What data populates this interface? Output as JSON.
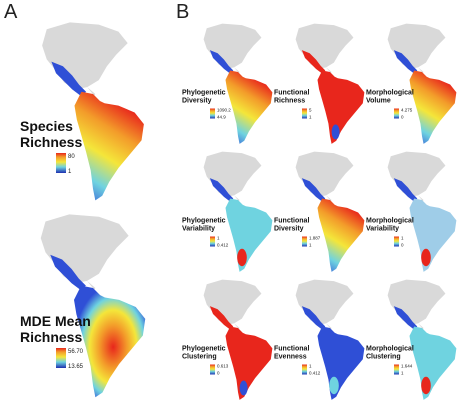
{
  "panels": {
    "A": {
      "letter": "A"
    },
    "B": {
      "letter": "B"
    }
  },
  "panel_a": [
    {
      "line1": "Species",
      "line2": "Richness",
      "legend_max": "80",
      "legend_min": "1",
      "fill": "gradient"
    },
    {
      "line1": "MDE Mean",
      "line2": "Richness",
      "legend_max": "56.70",
      "legend_min": "13.65",
      "fill": "radial"
    }
  ],
  "panel_b": [
    {
      "line1": "Phylogenetic",
      "line2": "Diversity",
      "legend_max": "1090.2",
      "legend_min": "44.9",
      "fill": "gradient"
    },
    {
      "line1": "Functional",
      "line2": "Richness",
      "legend_max": "5",
      "legend_min": "1",
      "fill": "red"
    },
    {
      "line1": "Morphological",
      "line2": "Volume",
      "legend_max": "4.275",
      "legend_min": "0",
      "fill": "gradient"
    },
    {
      "line1": "Phylogenetic",
      "line2": "Variability",
      "legend_max": "1",
      "legend_min": "0.412",
      "fill": "cyan"
    },
    {
      "line1": "Functional",
      "line2": "Diversity",
      "legend_max": "1.887",
      "legend_min": "1",
      "fill": "gradient"
    },
    {
      "line1": "Morphological",
      "line2": "Variability",
      "legend_max": "1",
      "legend_min": "0",
      "fill": "lightblue"
    },
    {
      "line1": "Phylogenetic",
      "line2": "Clustering",
      "legend_max": "0.613",
      "legend_min": "0",
      "fill": "red"
    },
    {
      "line1": "Functional",
      "line2": "Evenness",
      "legend_max": "1",
      "legend_min": "0.412",
      "fill": "blue"
    },
    {
      "line1": "Morphological",
      "line2": "Clustering",
      "legend_max": "1.644",
      "legend_min": "1",
      "fill": "cyan"
    }
  ],
  "colors": {
    "continent": "#d9d9d9",
    "red": "#e8261c",
    "orange": "#f39c2a",
    "yellow": "#f4e63a",
    "green": "#a6d86a",
    "cyan": "#6fd3e0",
    "lightblue": "#9fcde8",
    "blue": "#2f4fd6",
    "darkblue": "#1e2fb0"
  }
}
